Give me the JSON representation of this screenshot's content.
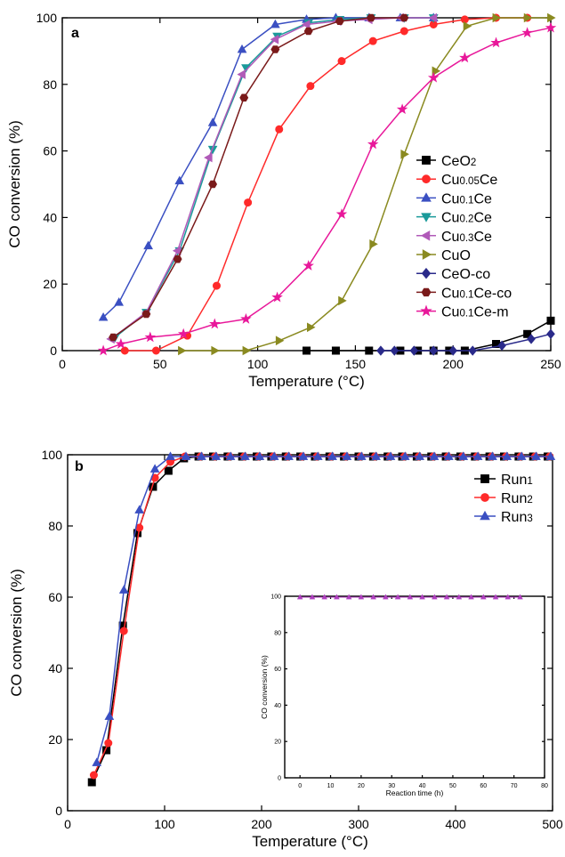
{
  "chart_data": [
    {
      "panel_label": "a",
      "type": "line",
      "xlabel": "Temperature (°C)",
      "ylabel": "CO conversion (%)",
      "xlim": [
        0,
        250
      ],
      "ylim": [
        0,
        100
      ],
      "xticks": [
        0,
        50,
        100,
        150,
        200,
        250
      ],
      "yticks": [
        0,
        20,
        40,
        60,
        80,
        100
      ],
      "grid": false,
      "legend_position": "right-middle",
      "series": [
        {
          "name": "CeO2",
          "marker": "square",
          "color": "#000000",
          "x": [
            125,
            140,
            157,
            173,
            182,
            190,
            198,
            206,
            222,
            238,
            250
          ],
          "y": [
            0,
            0,
            0,
            0,
            0,
            0,
            0,
            0,
            2,
            5,
            9
          ]
        },
        {
          "name": "Cu0.05Ce",
          "marker": "circle",
          "color": "#ff2a2a",
          "x": [
            32,
            48,
            64,
            79,
            95,
            111,
            127,
            143,
            159,
            175,
            190,
            206,
            222,
            238
          ],
          "y": [
            0,
            0,
            4.5,
            19.5,
            44.5,
            66.5,
            79.5,
            87,
            93,
            96,
            98,
            99.5,
            100,
            100
          ]
        },
        {
          "name": "Cu0.1Ce",
          "marker": "triangle-up",
          "color": "#3a4fc2",
          "x": [
            21,
            29,
            44,
            60,
            77,
            92,
            109,
            125,
            140,
            157,
            173,
            190
          ],
          "y": [
            10,
            14.5,
            31.5,
            51,
            68.5,
            90.5,
            98,
            99.5,
            100,
            100,
            100,
            100
          ]
        },
        {
          "name": "Cu0.2Ce",
          "marker": "triangle-down",
          "color": "#1a9a9a",
          "x": [
            27,
            43,
            60,
            77,
            94,
            110,
            126,
            142,
            158,
            175,
            190
          ],
          "y": [
            4,
            11.5,
            30,
            60.5,
            85,
            94.5,
            98.5,
            99.5,
            100,
            100,
            100
          ]
        },
        {
          "name": "Cu0.3Ce",
          "marker": "triangle-left",
          "color": "#b05ab8",
          "x": [
            25,
            43,
            59,
            75,
            92,
            109,
            125,
            141,
            157,
            173,
            190
          ],
          "y": [
            3.5,
            11.5,
            30,
            58,
            83,
            93.5,
            98,
            99,
            99.5,
            100,
            100
          ]
        },
        {
          "name": "CuO",
          "marker": "triangle-right",
          "color": "#8a8a20",
          "x": [
            61,
            78,
            94,
            111,
            127,
            143,
            159,
            175,
            191,
            207,
            222,
            238,
            250
          ],
          "y": [
            0,
            0,
            0,
            3,
            7,
            15,
            32,
            59,
            84,
            97.5,
            100,
            100,
            100
          ]
        },
        {
          "name": "CeO-co",
          "marker": "diamond",
          "color": "#2a2a8a",
          "x": [
            163,
            170,
            180,
            190,
            200,
            210,
            225,
            240,
            250
          ],
          "y": [
            0,
            0,
            0,
            0,
            0,
            0,
            1.5,
            3.5,
            5
          ]
        },
        {
          "name": "Cu0.1Ce-co",
          "marker": "hexagon",
          "color": "#7a1a1a",
          "x": [
            26,
            43,
            59,
            77,
            93,
            109,
            126,
            142,
            158,
            175
          ],
          "y": [
            4,
            11,
            27.5,
            50,
            76,
            90.5,
            96,
            99,
            100,
            100
          ]
        },
        {
          "name": "Cu0.1Ce-m",
          "marker": "star",
          "color": "#e8189a",
          "x": [
            21,
            30,
            45,
            62,
            78,
            94,
            110,
            126,
            143,
            159,
            174,
            190,
            206,
            222,
            238,
            250
          ],
          "y": [
            0,
            2,
            4,
            5,
            8,
            9.5,
            16,
            25.5,
            41,
            62,
            72.5,
            82,
            88,
            92.5,
            95.5,
            97
          ]
        }
      ]
    },
    {
      "panel_label": "b",
      "type": "line",
      "xlabel": "Temperature (°C)",
      "ylabel": "CO conversion (%)",
      "xlim": [
        0,
        500
      ],
      "ylim": [
        0,
        100
      ],
      "xticks": [
        0,
        100,
        200,
        300,
        400,
        500
      ],
      "yticks": [
        0,
        20,
        40,
        60,
        80,
        100
      ],
      "grid": false,
      "legend_position": "top-right",
      "series": [
        {
          "name": "Run1",
          "marker": "square",
          "color": "#000000",
          "x": [
            25,
            40,
            57,
            72,
            88,
            104,
            120,
            135,
            150,
            165,
            180,
            195,
            210,
            225,
            240,
            255,
            270,
            285,
            300,
            315,
            330,
            345,
            360,
            375,
            390,
            405,
            420,
            435,
            450,
            465,
            480,
            495
          ],
          "y": [
            8,
            17,
            52,
            78,
            91,
            95.5,
            99,
            99.5,
            99.5,
            99.5,
            99.5,
            99.5,
            99.5,
            99.5,
            99.5,
            99.5,
            99.5,
            99.5,
            99.5,
            99.5,
            99.5,
            99.5,
            99.5,
            99.5,
            99.5,
            99.5,
            99.5,
            99.5,
            99.5,
            99.5,
            99.5,
            99.5
          ]
        },
        {
          "name": "Run2",
          "marker": "circle",
          "color": "#ff2a2a",
          "x": [
            27,
            42,
            58,
            74,
            90,
            106,
            121,
            137,
            152,
            167,
            182,
            197,
            212,
            227,
            242,
            257,
            272,
            287,
            302,
            317,
            332,
            347,
            362,
            377,
            392,
            407,
            422,
            437,
            452,
            467,
            482,
            497
          ],
          "y": [
            10,
            19,
            50.5,
            79.5,
            93.5,
            98,
            99.5,
            99.5,
            99.5,
            99.5,
            99.5,
            99.5,
            99.5,
            99.5,
            99.5,
            99.5,
            99.5,
            99.5,
            99.5,
            99.5,
            99.5,
            99.5,
            99.5,
            99.5,
            99.5,
            99.5,
            99.5,
            99.5,
            99.5,
            99.5,
            99.5,
            99.5
          ]
        },
        {
          "name": "Run3",
          "marker": "triangle-up",
          "color": "#3a4fc2",
          "x": [
            30,
            43,
            58,
            74,
            90,
            106,
            122,
            138,
            153,
            168,
            183,
            198,
            213,
            228,
            243,
            258,
            273,
            288,
            303,
            318,
            333,
            348,
            363,
            378,
            393,
            408,
            423,
            438,
            453,
            468,
            483,
            498
          ],
          "y": [
            13.5,
            26.5,
            62,
            84.5,
            96,
            99.5,
            99.5,
            99.5,
            99.5,
            99.5,
            99.5,
            99.5,
            99.5,
            99.5,
            99.5,
            99.5,
            99.5,
            99.5,
            99.5,
            99.5,
            99.5,
            99.5,
            99.5,
            99.5,
            99.5,
            99.5,
            99.5,
            99.5,
            99.5,
            99.5,
            99.5,
            99.5
          ]
        }
      ],
      "inset": {
        "type": "line",
        "xlabel": "Reaction time (h)",
        "ylabel": "CO conversion (%)",
        "xlim": [
          -5,
          80
        ],
        "ylim": [
          0,
          100
        ],
        "xticks": [
          0,
          10,
          20,
          30,
          40,
          50,
          60,
          70,
          80
        ],
        "yticks": [
          0,
          20,
          40,
          60,
          80,
          100
        ],
        "series": [
          {
            "marker": "triangle-up",
            "color": "#b040c0",
            "x": [
              0,
              4,
              8,
              12,
              16,
              20,
              24,
              28,
              32,
              36,
              40,
              44,
              48,
              52,
              56,
              60,
              64,
              68,
              72
            ],
            "y": [
              99.5,
              99.5,
              99.5,
              99.5,
              99.5,
              99.5,
              99.5,
              99.5,
              99.5,
              99.5,
              99.5,
              99.5,
              99.5,
              99.5,
              99.5,
              99.5,
              99.5,
              99.5,
              99.5
            ]
          }
        ]
      }
    }
  ]
}
